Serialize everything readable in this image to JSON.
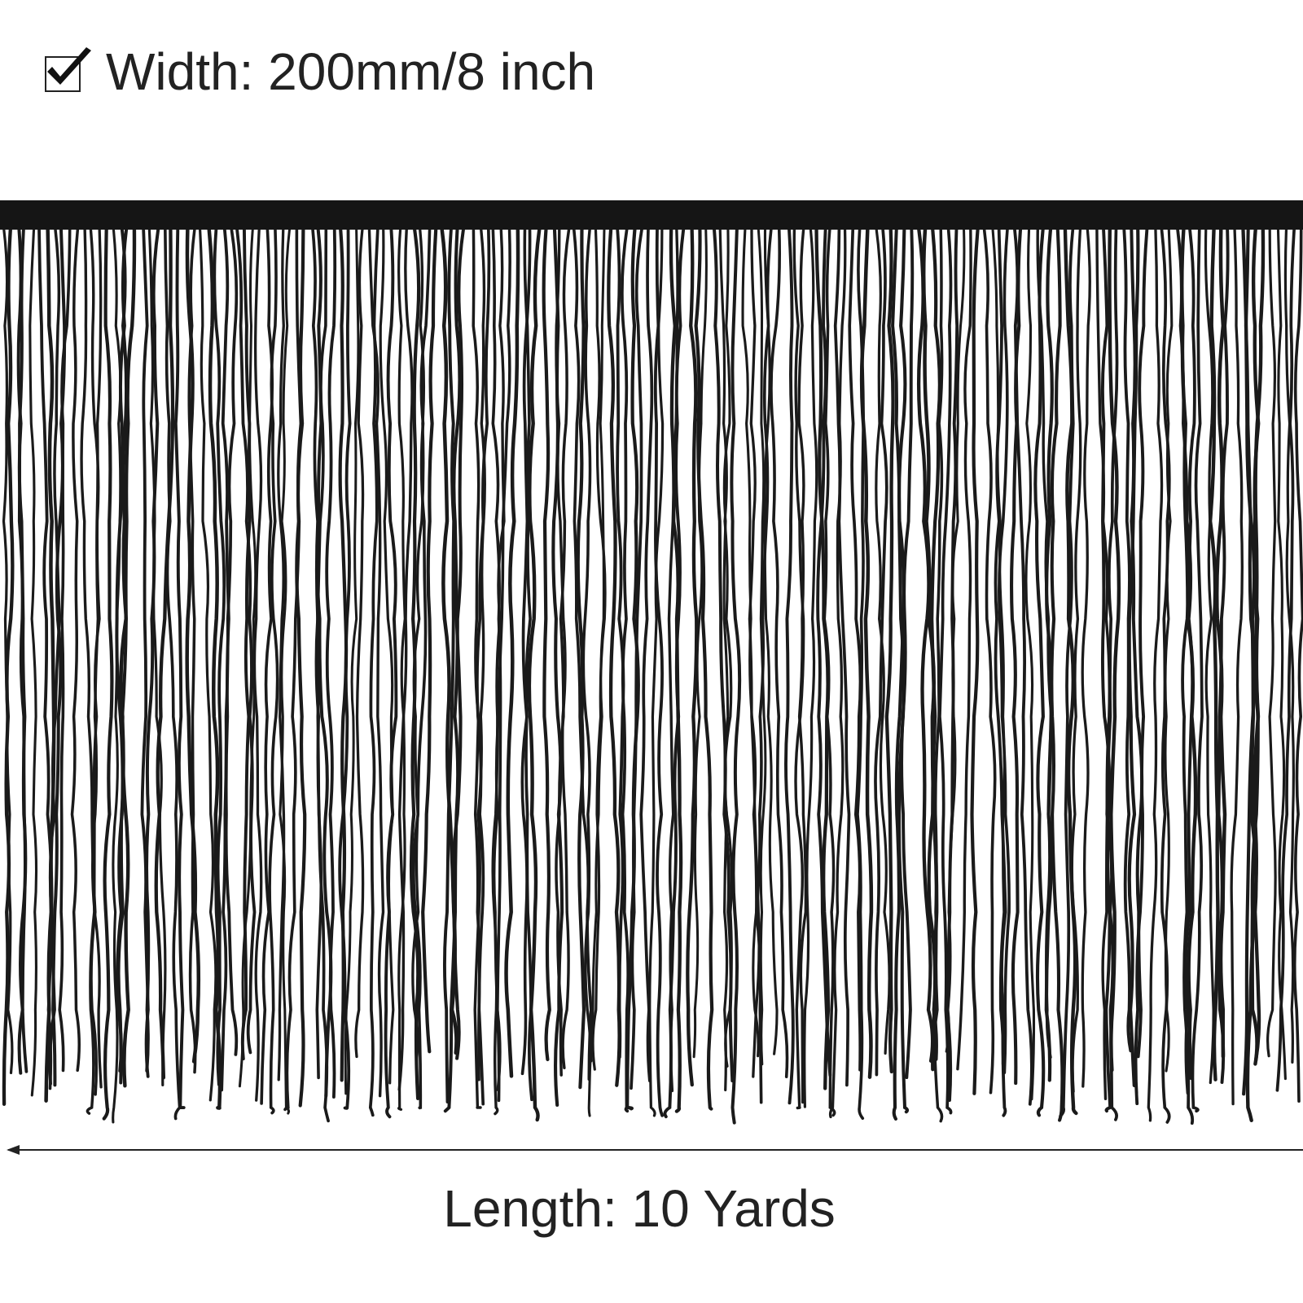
{
  "width_label": "Width: 200mm/8 inch",
  "length_label": "Length: 10 Yards"
}
